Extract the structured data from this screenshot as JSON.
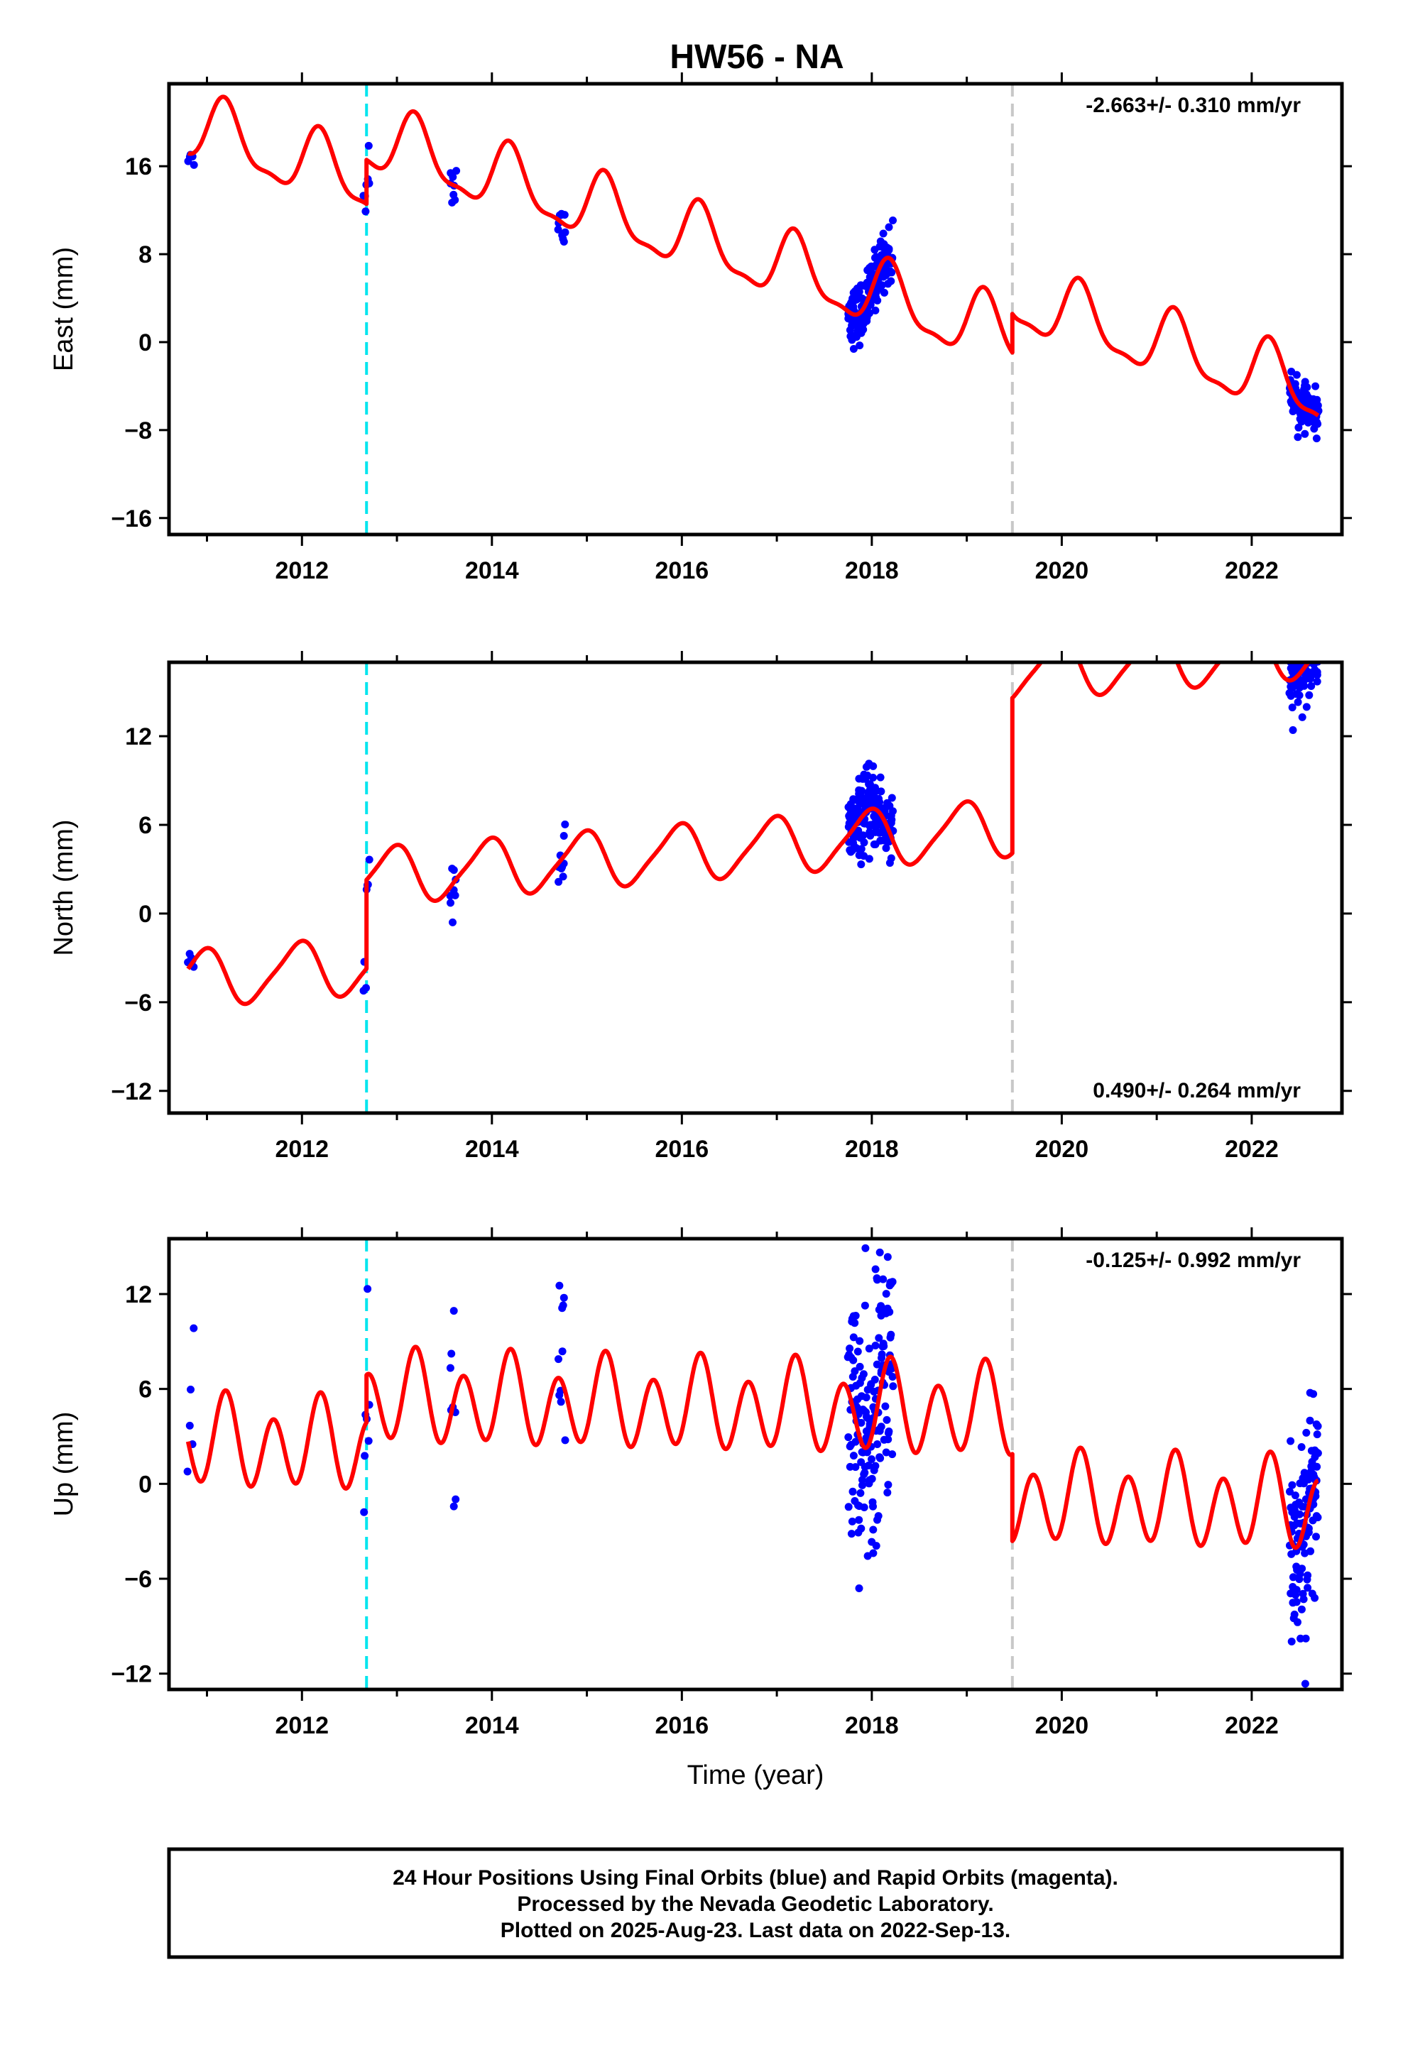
{
  "chart_data": {
    "type": "scatter",
    "title": "HW56 - NA",
    "xlabel": "Time (year)",
    "xlim": [
      2010.6,
      2022.95
    ],
    "xticks": [
      2012,
      2014,
      2016,
      2018,
      2020,
      2022
    ],
    "events": [
      {
        "year": 2012.68,
        "color": "#00e5ee",
        "style": "dashed"
      },
      {
        "year": 2019.48,
        "color": "#c8c8c8",
        "style": "dashed"
      }
    ],
    "colors": {
      "data": "#0000ff",
      "model": "#ff0000",
      "frame": "#000000"
    },
    "panels": [
      {
        "name": "east",
        "ylabel": "East (mm)",
        "ylim": [
          -17.5,
          23.5
        ],
        "yticks": [
          -16,
          -8,
          0,
          8,
          16
        ],
        "yticklabels": [
          "−16",
          "−8",
          "0",
          "8",
          "16"
        ],
        "rate": "-2.663+/- 0.310 mm/yr",
        "rate_position": "top-right",
        "model": {
          "trend": -2.663,
          "ref_year": 2017.0,
          "intercept": 3.0,
          "annual_sin": 2.7,
          "annual_cos": 1.0,
          "semi_sin": 0.8,
          "semi_cos": -0.5,
          "offsets": [
            {
              "year": 2012.68,
              "value": 4.0
            },
            {
              "year": 2019.48,
              "value": 3.5
            }
          ]
        },
        "sessions": [
          {
            "start": 2010.8,
            "end": 2010.86,
            "n": 5,
            "scatter": 0.7
          },
          {
            "start": 2012.65,
            "end": 2012.71,
            "n": 7,
            "scatter": 1.4
          },
          {
            "start": 2013.56,
            "end": 2013.62,
            "n": 8,
            "scatter": 1.1
          },
          {
            "start": 2014.7,
            "end": 2014.77,
            "n": 10,
            "scatter": 0.9
          },
          {
            "start": 2017.75,
            "end": 2018.22,
            "n": 170,
            "scatter": 1.3
          },
          {
            "start": 2022.4,
            "end": 2022.7,
            "n": 110,
            "scatter": 0.9
          }
        ]
      },
      {
        "name": "north",
        "ylabel": "North (mm)",
        "ylim": [
          -13.5,
          17.0
        ],
        "yticks": [
          -12,
          -6,
          0,
          6,
          12
        ],
        "yticklabels": [
          "−12",
          "−6",
          "0",
          "6",
          "12"
        ],
        "rate": "0.490+/- 0.264 mm/yr",
        "rate_position": "bottom-right",
        "model": {
          "trend": 0.49,
          "ref_year": 2017.0,
          "intercept": -1.4,
          "annual_sin": -0.5,
          "annual_cos": 1.8,
          "semi_sin": 0.3,
          "semi_cos": 0.2,
          "offsets": [
            {
              "year": 2012.68,
              "value": 6.0
            },
            {
              "year": 2019.48,
              "value": 10.5
            }
          ]
        },
        "sessions": [
          {
            "start": 2010.8,
            "end": 2010.86,
            "n": 5,
            "scatter": 0.5
          },
          {
            "start": 2012.65,
            "end": 2012.71,
            "n": 7,
            "scatter": 1.0
          },
          {
            "start": 2013.56,
            "end": 2013.62,
            "n": 8,
            "scatter": 0.9
          },
          {
            "start": 2014.7,
            "end": 2014.77,
            "n": 10,
            "scatter": 1.2
          },
          {
            "start": 2017.75,
            "end": 2018.22,
            "n": 170,
            "scatter": 1.3
          },
          {
            "start": 2022.4,
            "end": 2022.7,
            "n": 110,
            "scatter": 1.2
          }
        ]
      },
      {
        "name": "up",
        "ylabel": "Up (mm)",
        "ylim": [
          -13.0,
          15.5
        ],
        "yticks": [
          -12,
          -6,
          0,
          6,
          12
        ],
        "yticklabels": [
          "−12",
          "−6",
          "0",
          "6",
          "12"
        ],
        "rate": "-0.125+/- 0.992 mm/yr",
        "rate_position": "top-right",
        "model": {
          "trend": -0.125,
          "ref_year": 2017.0,
          "intercept": 1.8,
          "annual_sin": 0.8,
          "annual_cos": 0.4,
          "semi_sin": 1.5,
          "semi_cos": -2.0,
          "offsets": [
            {
              "year": 2012.68,
              "value": 3.0
            },
            {
              "year": 2019.48,
              "value": -5.5
            }
          ]
        },
        "sessions": [
          {
            "start": 2010.8,
            "end": 2010.86,
            "n": 5,
            "scatter": 3.5
          },
          {
            "start": 2012.65,
            "end": 2012.71,
            "n": 7,
            "scatter": 3.5
          },
          {
            "start": 2013.56,
            "end": 2013.62,
            "n": 8,
            "scatter": 4.5
          },
          {
            "start": 2014.7,
            "end": 2014.77,
            "n": 10,
            "scatter": 3.5
          },
          {
            "start": 2017.75,
            "end": 2018.22,
            "n": 170,
            "scatter": 4.0
          },
          {
            "start": 2022.4,
            "end": 2022.7,
            "n": 110,
            "scatter": 3.6
          }
        ]
      }
    ]
  },
  "footer": {
    "line1": "24 Hour Positions Using Final Orbits (blue) and Rapid Orbits (magenta).",
    "line2": "Processed by the Nevada Geodetic Laboratory.",
    "line3": "Plotted on 2025-Aug-23. Last data on 2022-Sep-13."
  }
}
